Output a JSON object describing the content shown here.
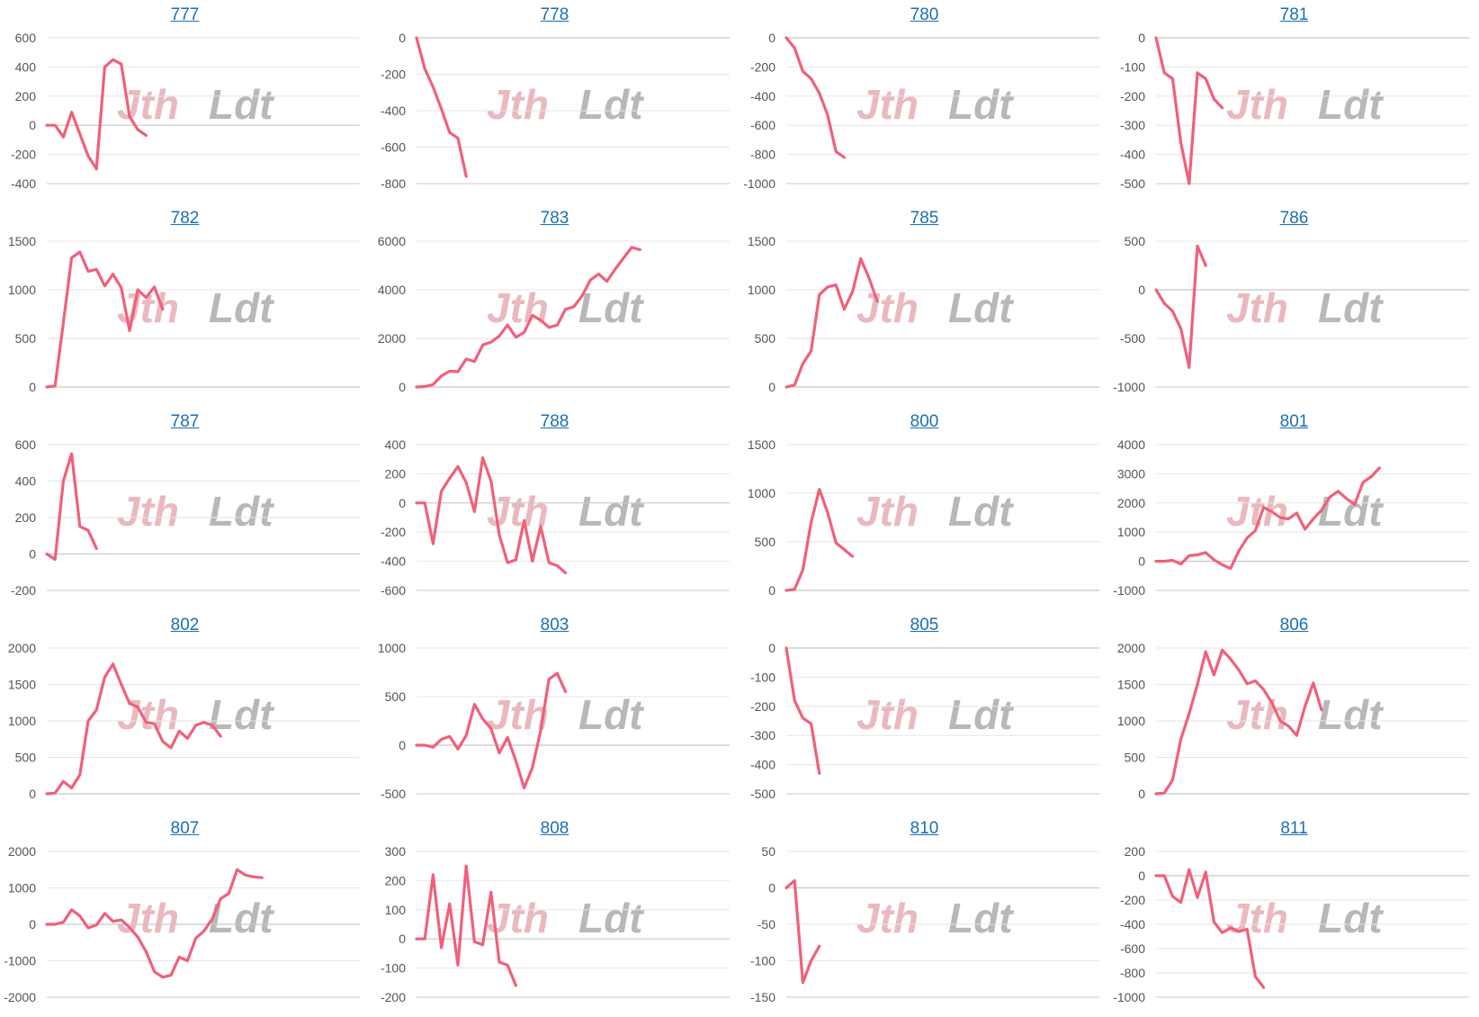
{
  "colors": {
    "line": "#f0607a",
    "grid": "#e6e6e6",
    "axis": "#c8c8c8",
    "title": "#1a6fb5",
    "watermark_red": "#e9b9be",
    "watermark_gray": "#b8b8b8"
  },
  "watermark": {
    "left": "Jth",
    "right": "Ldt"
  },
  "chart_data": [
    {
      "type": "line",
      "title": "777",
      "yticks": [
        600,
        400,
        200,
        0,
        -200,
        -400
      ],
      "ylim": [
        -400,
        600
      ],
      "values": [
        0,
        0,
        -80,
        90,
        -60,
        -210,
        -300,
        400,
        450,
        420,
        60,
        -30,
        -70
      ]
    },
    {
      "type": "line",
      "title": "778",
      "yticks": [
        0,
        -200,
        -400,
        -600,
        -800
      ],
      "ylim": [
        -800,
        0
      ],
      "values": [
        0,
        -170,
        -270,
        -390,
        -520,
        -550,
        -760
      ]
    },
    {
      "type": "line",
      "title": "780",
      "yticks": [
        0,
        -200,
        -400,
        -600,
        -800,
        -1000
      ],
      "ylim": [
        -1000,
        0
      ],
      "values": [
        0,
        -70,
        -230,
        -280,
        -380,
        -530,
        -780,
        -820
      ]
    },
    {
      "type": "line",
      "title": "781",
      "yticks": [
        0,
        -100,
        -200,
        -300,
        -400,
        -500
      ],
      "ylim": [
        -500,
        0
      ],
      "values": [
        0,
        -120,
        -140,
        -360,
        -500,
        -120,
        -140,
        -210,
        -240
      ]
    },
    {
      "type": "line",
      "title": "782",
      "yticks": [
        1500,
        1000,
        500,
        0
      ],
      "ylim": [
        0,
        1500
      ],
      "values": [
        0,
        10,
        660,
        1330,
        1390,
        1190,
        1210,
        1040,
        1160,
        1020,
        580,
        1000,
        920,
        1030,
        800
      ]
    },
    {
      "type": "line",
      "title": "783",
      "yticks": [
        6000,
        4000,
        2000,
        0
      ],
      "ylim": [
        0,
        6000
      ],
      "values": [
        0,
        20,
        100,
        450,
        650,
        630,
        1150,
        1050,
        1730,
        1850,
        2100,
        2550,
        2050,
        2250,
        2950,
        2750,
        2450,
        2550,
        3200,
        3300,
        3750,
        4400,
        4650,
        4350,
        4850,
        5300,
        5750,
        5650
      ]
    },
    {
      "type": "line",
      "title": "785",
      "yticks": [
        1500,
        1000,
        500,
        0
      ],
      "ylim": [
        0,
        1500
      ],
      "values": [
        0,
        20,
        240,
        370,
        950,
        1030,
        1050,
        800,
        980,
        1320,
        1120,
        880
      ]
    },
    {
      "type": "line",
      "title": "786",
      "yticks": [
        500,
        0,
        -500,
        -1000
      ],
      "ylim": [
        -1000,
        500
      ],
      "values": [
        0,
        -140,
        -220,
        -400,
        -800,
        450,
        250
      ]
    },
    {
      "type": "line",
      "title": "787",
      "yticks": [
        600,
        400,
        200,
        0,
        -200
      ],
      "ylim": [
        -200,
        600
      ],
      "values": [
        0,
        -30,
        400,
        550,
        150,
        130,
        30
      ]
    },
    {
      "type": "line",
      "title": "788",
      "yticks": [
        400,
        200,
        0,
        -200,
        -400,
        -600
      ],
      "ylim": [
        -600,
        400
      ],
      "values": [
        0,
        0,
        -280,
        80,
        170,
        250,
        140,
        -60,
        310,
        150,
        -220,
        -410,
        -390,
        -120,
        -400,
        -160,
        -410,
        -430,
        -480
      ]
    },
    {
      "type": "line",
      "title": "800",
      "yticks": [
        1500,
        1000,
        500,
        0
      ],
      "ylim": [
        0,
        1500
      ],
      "values": [
        0,
        10,
        210,
        700,
        1040,
        800,
        490,
        420,
        350
      ]
    },
    {
      "type": "line",
      "title": "801",
      "yticks": [
        4000,
        3000,
        2000,
        1000,
        0,
        -1000
      ],
      "ylim": [
        -1000,
        4000
      ],
      "values": [
        0,
        0,
        30,
        -100,
        190,
        220,
        300,
        50,
        -120,
        -250,
        350,
        800,
        1050,
        1850,
        1700,
        1500,
        1450,
        1650,
        1100,
        1450,
        1750,
        2200,
        2400,
        2150,
        1950,
        2700,
        2900,
        3200
      ]
    },
    {
      "type": "line",
      "title": "802",
      "yticks": [
        2000,
        1500,
        1000,
        500,
        0
      ],
      "ylim": [
        0,
        2000
      ],
      "values": [
        0,
        10,
        170,
        80,
        260,
        1000,
        1150,
        1600,
        1780,
        1500,
        1240,
        1190,
        980,
        960,
        720,
        630,
        860,
        760,
        940,
        980,
        940,
        790
      ]
    },
    {
      "type": "line",
      "title": "803",
      "yticks": [
        1000,
        500,
        0,
        -500
      ],
      "ylim": [
        -500,
        1000
      ],
      "values": [
        0,
        0,
        -20,
        60,
        90,
        -40,
        100,
        420,
        270,
        170,
        -80,
        80,
        -160,
        -440,
        -230,
        150,
        680,
        740,
        550
      ]
    },
    {
      "type": "line",
      "title": "805",
      "yticks": [
        0,
        -100,
        -200,
        -300,
        -400,
        -500
      ],
      "ylim": [
        -500,
        0
      ],
      "values": [
        0,
        -180,
        -240,
        -260,
        -430
      ]
    },
    {
      "type": "line",
      "title": "806",
      "yticks": [
        2000,
        1500,
        1000,
        500,
        0
      ],
      "ylim": [
        0,
        2000
      ],
      "values": [
        0,
        10,
        190,
        750,
        1100,
        1500,
        1950,
        1630,
        1970,
        1850,
        1700,
        1510,
        1550,
        1430,
        1250,
        1000,
        930,
        800,
        1200,
        1520,
        1150
      ]
    },
    {
      "type": "line",
      "title": "807",
      "yticks": [
        2000,
        1000,
        0,
        -1000,
        -2000
      ],
      "ylim": [
        -2000,
        2000
      ],
      "values": [
        0,
        0,
        60,
        400,
        230,
        -100,
        -20,
        300,
        80,
        120,
        -90,
        -350,
        -750,
        -1300,
        -1450,
        -1400,
        -900,
        -1000,
        -380,
        -180,
        150,
        700,
        850,
        1500,
        1350,
        1300,
        1280
      ]
    },
    {
      "type": "line",
      "title": "808",
      "yticks": [
        300,
        200,
        100,
        0,
        -100,
        -200
      ],
      "ylim": [
        -200,
        300
      ],
      "values": [
        0,
        0,
        220,
        -30,
        120,
        -90,
        250,
        -10,
        -20,
        160,
        -80,
        -90,
        -160
      ]
    },
    {
      "type": "line",
      "title": "810",
      "yticks": [
        50,
        0,
        -50,
        -100,
        -150
      ],
      "ylim": [
        -150,
        50
      ],
      "values": [
        0,
        10,
        -130,
        -100,
        -80
      ]
    },
    {
      "type": "line",
      "title": "811",
      "yticks": [
        200,
        0,
        -200,
        -400,
        -600,
        -800,
        -1000
      ],
      "ylim": [
        -1000,
        200
      ],
      "values": [
        0,
        0,
        -170,
        -220,
        50,
        -180,
        30,
        -380,
        -470,
        -430,
        -460,
        -440,
        -830,
        -920
      ]
    }
  ]
}
